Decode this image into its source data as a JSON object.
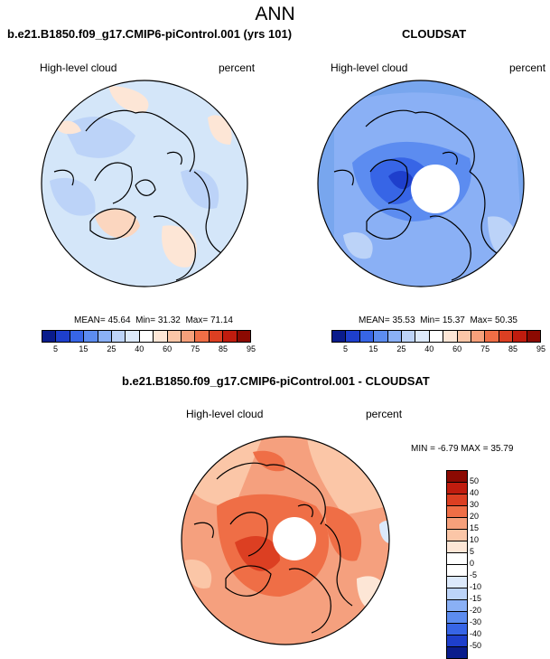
{
  "page_title": "ANN",
  "panels": [
    {
      "title": "b.e21.B1850.f09_g17.CMIP6-piControl.001 (yrs 101)",
      "variable": "High-level cloud",
      "units": "percent",
      "stats": {
        "mean_label": "MEAN=",
        "mean": "45.64",
        "min_label": "Min=",
        "min": "31.32",
        "max_label": "Max=",
        "max": "71.14"
      },
      "background_color": "#d4e6f9"
    },
    {
      "title": "CLOUDSAT",
      "variable": "High-level cloud",
      "units": "percent",
      "stats": {
        "mean_label": "MEAN=",
        "mean": "35.53",
        "min_label": "Min=",
        "min": "15.37",
        "max_label": "Max=",
        "max": "50.35"
      },
      "background_color": "#78a6ee"
    },
    {
      "title": "b.e21.B1850.f09_g17.CMIP6-piControl.001 - CLOUDSAT",
      "variable": "High-level cloud",
      "units": "percent",
      "stats_text": "MIN = -6.79 MAX = 35.79",
      "background_color": "#f5a07e"
    }
  ],
  "colorbar_abs": {
    "labels": [
      "5",
      "15",
      "25",
      "40",
      "60",
      "75",
      "85",
      "95"
    ],
    "colors": [
      "#0a1c8c",
      "#1e3fcc",
      "#3765e6",
      "#5c8cf0",
      "#8ab0f5",
      "#bcd3f8",
      "#dce9fb",
      "#ffffff",
      "#fde6d6",
      "#fbc6a7",
      "#f6a07b",
      "#ef6e46",
      "#dc3f22",
      "#c01c0e",
      "#8c0a02"
    ]
  },
  "colorbar_diff": {
    "labels": [
      "50",
      "40",
      "30",
      "20",
      "15",
      "10",
      "5",
      "0",
      "-5",
      "-10",
      "-15",
      "-20",
      "-30",
      "-40",
      "-50"
    ],
    "colors": [
      "#8c0a02",
      "#c01c0e",
      "#dc3f22",
      "#ef6e46",
      "#f6a07b",
      "#fbc6a7",
      "#fde6d6",
      "#ffffff",
      "#ffffff",
      "#dce9fb",
      "#bcd3f8",
      "#8ab0f5",
      "#5c8cf0",
      "#3765e6",
      "#1e3fcc",
      "#0a1c8c"
    ]
  }
}
